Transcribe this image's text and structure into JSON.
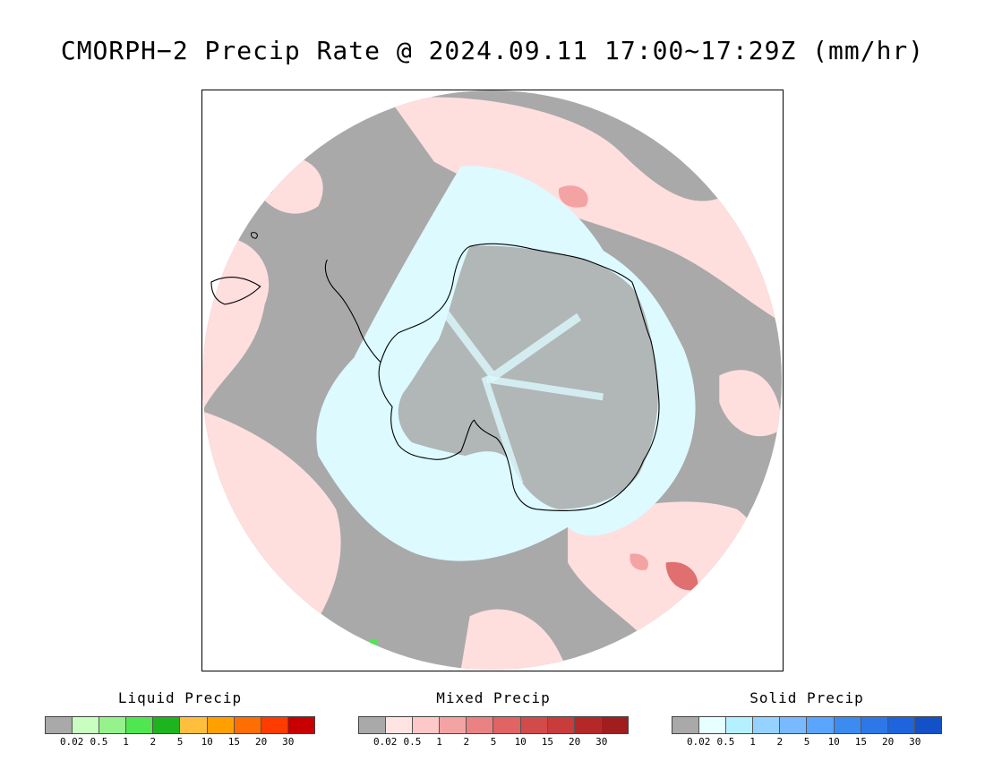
{
  "title": "CMORPH−2 Precip Rate @ 2024.09.11 17:00~17:29Z (mm/hr)",
  "colors": {
    "no_precip": "#a9a9a9",
    "mixed_light": "#ffdede",
    "mixed_mid": "#f4a3a3",
    "mixed_strong": "#e07070",
    "solid_light": "#dcfaff",
    "ocean_bg": "#a9a9a9",
    "coast": "#000000"
  },
  "legends": [
    {
      "title": "Liquid Precip",
      "colors": [
        "#a9a9a9",
        "#c8ffc0",
        "#96f28c",
        "#50e650",
        "#1eb41e",
        "#ffbe3c",
        "#ffa000",
        "#ff6e00",
        "#ff3c00",
        "#c80000"
      ]
    },
    {
      "title": "Mixed Precip",
      "colors": [
        "#a9a9a9",
        "#ffe4e4",
        "#ffc8c8",
        "#f4a3a3",
        "#eb8282",
        "#e06464",
        "#d24b4b",
        "#c83c3c",
        "#b42828",
        "#a01e1e"
      ]
    },
    {
      "title": "Solid Precip",
      "colors": [
        "#a9a9a9",
        "#e6ffff",
        "#b4f0ff",
        "#96d2ff",
        "#78b9ff",
        "#5aa5ff",
        "#3c8cf0",
        "#2d78e6",
        "#1e64dc",
        "#1450c8"
      ]
    }
  ],
  "tick_labels": [
    "0.02",
    "0.5",
    "1",
    "2",
    "5",
    "10",
    "15",
    "20",
    "30"
  ]
}
